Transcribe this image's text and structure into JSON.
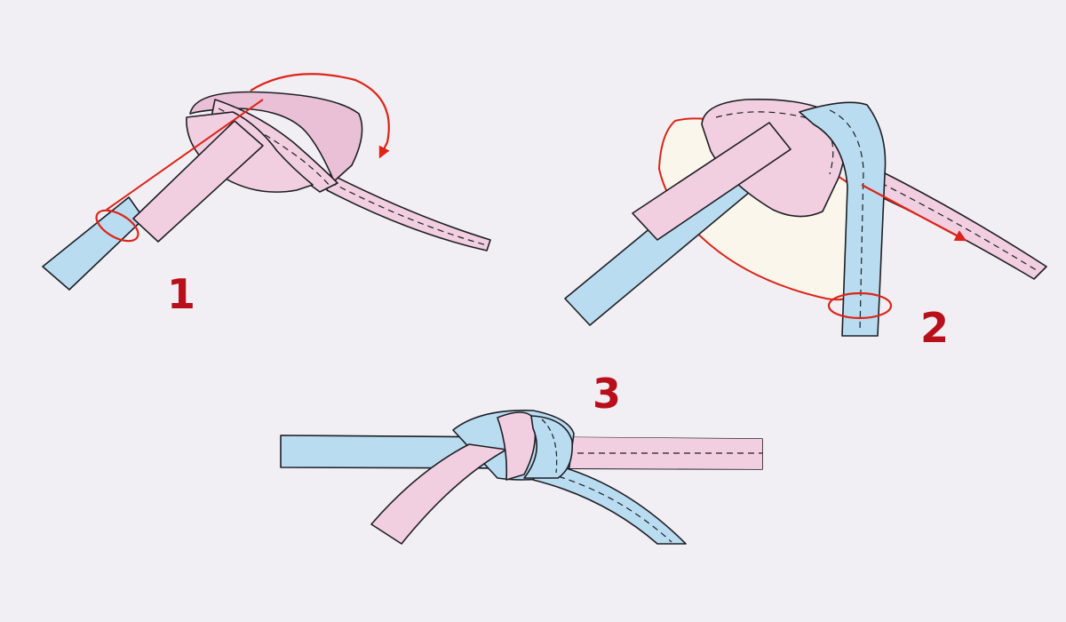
{
  "steps": [
    {
      "number": "1"
    },
    {
      "number": "2"
    },
    {
      "number": "3"
    }
  ],
  "colors": {
    "background": "#f1eff4",
    "pink_belt": "#f1cfe0",
    "blue_belt": "#b9dcf0",
    "outline": "#1e1e24",
    "annotation_red": "#dd2418",
    "step_number": "#b8101a",
    "highlight_area": "#fbf6ec"
  },
  "icons": {
    "step1_arrow": "curved-arrow-icon",
    "step2_arrow": "straight-arrow-icon"
  }
}
